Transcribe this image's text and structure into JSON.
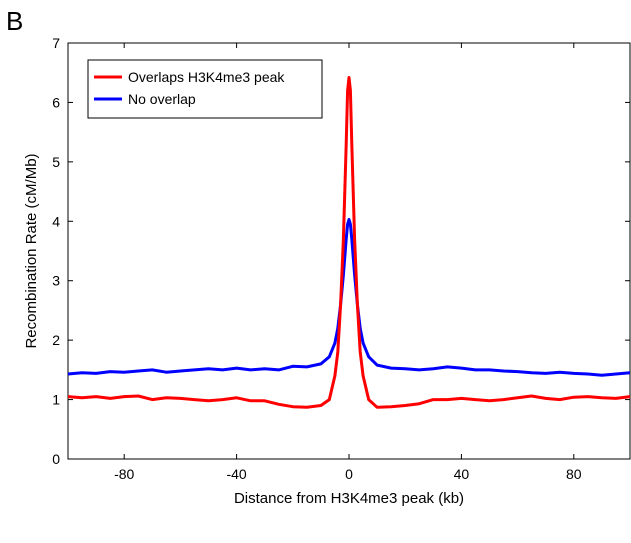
{
  "panel_label": "B",
  "chart_data": {
    "type": "line",
    "title": "",
    "xlabel": "Distance from H3K4me3 peak (kb)",
    "ylabel": "Recombination Rate (cM/Mb)",
    "xlim": [
      -100,
      100
    ],
    "ylim": [
      0,
      7
    ],
    "xticks": [
      -80,
      -40,
      0,
      40,
      80
    ],
    "yticks": [
      0,
      1,
      2,
      3,
      4,
      5,
      6,
      7
    ],
    "xtick_labels": [
      "-80",
      "-40",
      "0",
      "40",
      "80"
    ],
    "ytick_labels": [
      "0",
      "1",
      "2",
      "3",
      "4",
      "5",
      "6",
      "7"
    ],
    "grid": false,
    "legend_position": "top-left",
    "series": [
      {
        "name": "Overlaps H3K4me3 peak",
        "color": "#ff0000",
        "points": [
          [
            -100,
            1.05
          ],
          [
            -95,
            1.03
          ],
          [
            -90,
            1.05
          ],
          [
            -85,
            1.02
          ],
          [
            -80,
            1.05
          ],
          [
            -75,
            1.06
          ],
          [
            -70,
            1.0
          ],
          [
            -65,
            1.03
          ],
          [
            -60,
            1.02
          ],
          [
            -55,
            1.0
          ],
          [
            -50,
            0.98
          ],
          [
            -45,
            1.0
          ],
          [
            -40,
            1.03
          ],
          [
            -35,
            0.98
          ],
          [
            -30,
            0.98
          ],
          [
            -25,
            0.92
          ],
          [
            -20,
            0.88
          ],
          [
            -15,
            0.87
          ],
          [
            -10,
            0.9
          ],
          [
            -7,
            1.0
          ],
          [
            -5,
            1.4
          ],
          [
            -4,
            1.8
          ],
          [
            -3,
            2.6
          ],
          [
            -2,
            3.7
          ],
          [
            -1,
            5.3
          ],
          [
            -0.5,
            6.2
          ],
          [
            0,
            6.42
          ],
          [
            0.5,
            6.2
          ],
          [
            1,
            5.3
          ],
          [
            2,
            3.7
          ],
          [
            3,
            2.6
          ],
          [
            4,
            1.8
          ],
          [
            5,
            1.4
          ],
          [
            7,
            1.0
          ],
          [
            10,
            0.87
          ],
          [
            15,
            0.88
          ],
          [
            20,
            0.9
          ],
          [
            25,
            0.93
          ],
          [
            30,
            1.0
          ],
          [
            35,
            1.0
          ],
          [
            40,
            1.02
          ],
          [
            45,
            1.0
          ],
          [
            50,
            0.98
          ],
          [
            55,
            1.0
          ],
          [
            60,
            1.03
          ],
          [
            65,
            1.06
          ],
          [
            70,
            1.02
          ],
          [
            75,
            1.0
          ],
          [
            80,
            1.04
          ],
          [
            85,
            1.05
          ],
          [
            90,
            1.03
          ],
          [
            95,
            1.02
          ],
          [
            100,
            1.05
          ]
        ]
      },
      {
        "name": "No overlap",
        "color": "#0000ff",
        "points": [
          [
            -100,
            1.43
          ],
          [
            -95,
            1.45
          ],
          [
            -90,
            1.44
          ],
          [
            -85,
            1.47
          ],
          [
            -80,
            1.46
          ],
          [
            -75,
            1.48
          ],
          [
            -70,
            1.5
          ],
          [
            -65,
            1.46
          ],
          [
            -60,
            1.48
          ],
          [
            -55,
            1.5
          ],
          [
            -50,
            1.52
          ],
          [
            -45,
            1.5
          ],
          [
            -40,
            1.53
          ],
          [
            -35,
            1.5
          ],
          [
            -30,
            1.52
          ],
          [
            -25,
            1.5
          ],
          [
            -20,
            1.56
          ],
          [
            -15,
            1.55
          ],
          [
            -10,
            1.6
          ],
          [
            -7,
            1.72
          ],
          [
            -5,
            1.95
          ],
          [
            -4,
            2.2
          ],
          [
            -3,
            2.6
          ],
          [
            -2,
            3.1
          ],
          [
            -1,
            3.7
          ],
          [
            -0.5,
            3.95
          ],
          [
            0,
            4.03
          ],
          [
            0.5,
            3.95
          ],
          [
            1,
            3.7
          ],
          [
            2,
            3.1
          ],
          [
            3,
            2.6
          ],
          [
            4,
            2.2
          ],
          [
            5,
            1.95
          ],
          [
            7,
            1.72
          ],
          [
            10,
            1.58
          ],
          [
            15,
            1.53
          ],
          [
            20,
            1.52
          ],
          [
            25,
            1.5
          ],
          [
            30,
            1.52
          ],
          [
            35,
            1.55
          ],
          [
            40,
            1.53
          ],
          [
            45,
            1.5
          ],
          [
            50,
            1.5
          ],
          [
            55,
            1.48
          ],
          [
            60,
            1.47
          ],
          [
            65,
            1.45
          ],
          [
            70,
            1.44
          ],
          [
            75,
            1.46
          ],
          [
            80,
            1.44
          ],
          [
            85,
            1.43
          ],
          [
            90,
            1.41
          ],
          [
            95,
            1.43
          ],
          [
            100,
            1.45
          ]
        ]
      }
    ]
  }
}
